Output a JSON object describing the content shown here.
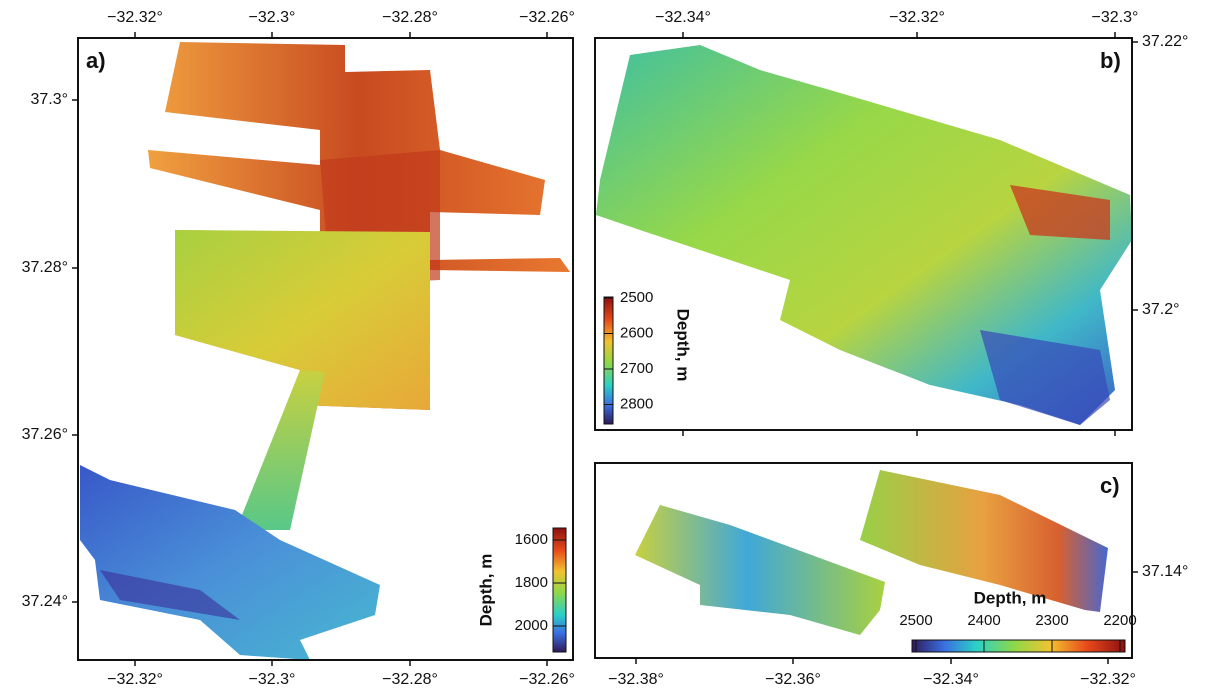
{
  "panels": [
    {
      "label": "a)",
      "x_ticks": [
        "−32.32°",
        "−32.3°",
        "−32.28°",
        "−32.26°"
      ],
      "y_ticks": [
        "37.3°",
        "37.28°",
        "37.26°",
        "37.24°"
      ],
      "colorbar": {
        "label": "Depth, m",
        "ticks": [
          1600,
          1800,
          2000
        ]
      }
    },
    {
      "label": "b)",
      "x_ticks": [
        "−32.34°",
        "−32.32°",
        "−32.3°"
      ],
      "y_ticks": [
        "37.22°",
        "37.2°"
      ],
      "colorbar": {
        "label": "Depth, m",
        "ticks": [
          2500,
          2600,
          2700,
          2800
        ]
      }
    },
    {
      "label": "c)",
      "x_ticks": [
        "−32.38°",
        "−32.36°",
        "−32.34°",
        "−32.32°"
      ],
      "y_ticks": [
        "37.14°"
      ],
      "colorbar": {
        "label": "Depth, m",
        "ticks": [
          2500,
          2400,
          2300,
          2200
        ]
      }
    }
  ]
}
